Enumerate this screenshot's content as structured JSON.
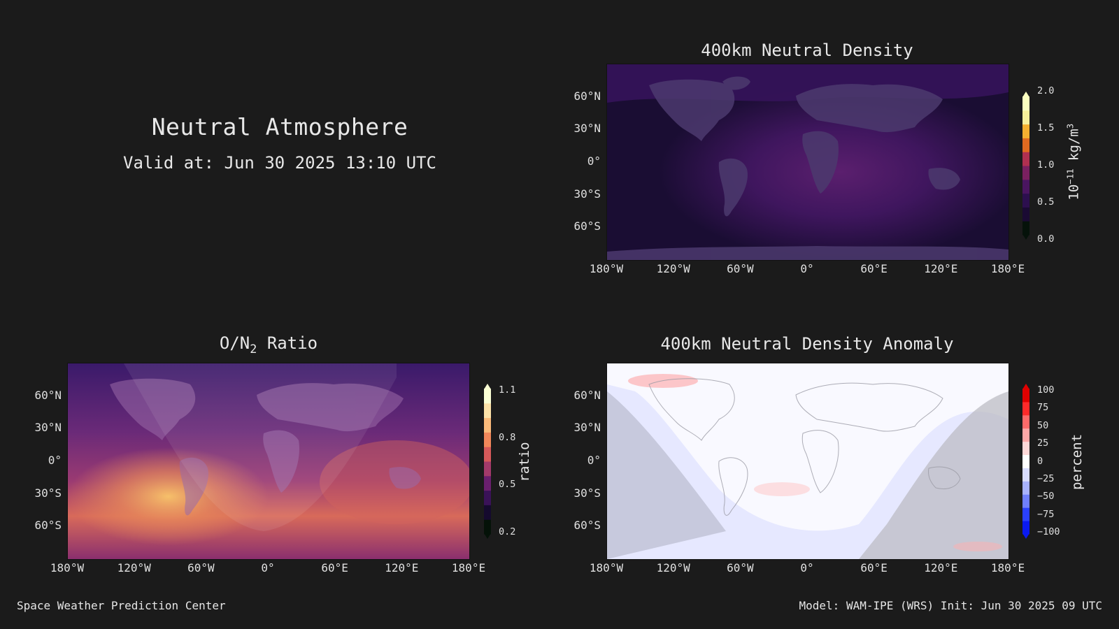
{
  "header": {
    "title": "Neutral Atmosphere",
    "valid": "Valid at: Jun 30 2025 13:10 UTC"
  },
  "axes": {
    "lon_ticks": [
      "180°W",
      "120°W",
      "60°W",
      "0°",
      "60°E",
      "120°E",
      "180°E"
    ],
    "lat_ticks": [
      "60°N",
      "30°N",
      "0°",
      "30°S",
      "60°S"
    ]
  },
  "panels": {
    "density": {
      "title": "400km Neutral Density",
      "colorbar_ticks": [
        "2.0",
        "1.5",
        "1.0",
        "0.5",
        "0.0"
      ],
      "colorbar_unit_main": "10",
      "colorbar_unit_exp": "−11",
      "colorbar_unit_rest": " kg/m",
      "colorbar_unit_exp2": "3",
      "colors": [
        "#05120a",
        "#1a0a33",
        "#2c0f4e",
        "#4a1560",
        "#7a2060",
        "#b03050",
        "#e06a20",
        "#f5b030",
        "#f8f09a",
        "#fbffc0"
      ]
    },
    "on2": {
      "title_prefix": "O/N",
      "title_sub": "2",
      "title_suffix": " Ratio",
      "colorbar_ticks": [
        "1.1",
        "0.8",
        "0.5",
        "0.2"
      ],
      "colorbar_unit": "ratio",
      "colors": [
        "#041208",
        "#150a2e",
        "#3a1258",
        "#6a1f6e",
        "#a33a6a",
        "#d6595a",
        "#f2875a",
        "#fbba7a",
        "#fde2a8",
        "#fbffd4"
      ]
    },
    "anomaly": {
      "title": "400km Neutral Density Anomaly",
      "colorbar_ticks": [
        "100",
        "75",
        "50",
        "25",
        "0",
        "−25",
        "−50",
        "−75",
        "−100"
      ],
      "colorbar_unit": "percent",
      "colors": [
        "#0a1af0",
        "#2a40ff",
        "#6f7fff",
        "#a8b2ff",
        "#d8dcff",
        "#ffffff",
        "#ffd8d8",
        "#ffa8a8",
        "#ff6a6a",
        "#ff2a2a",
        "#e00000"
      ]
    }
  },
  "footer": {
    "left": "Space Weather Prediction Center",
    "right": "Model: WAM-IPE (WRS) Init: Jun 30 2025 09 UTC"
  }
}
